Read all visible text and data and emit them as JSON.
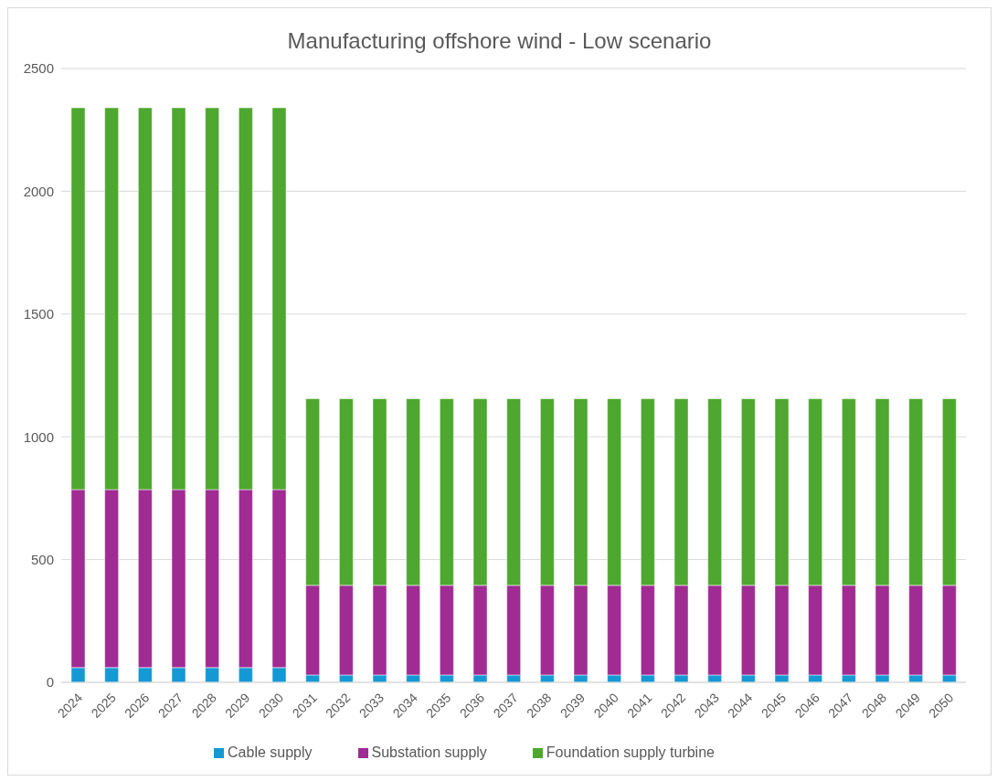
{
  "chart_data": {
    "type": "bar",
    "title": "Manufacturing offshore wind - Low scenario",
    "stacked": true,
    "categories": [
      "2024",
      "2025",
      "2026",
      "2027",
      "2028",
      "2029",
      "2030",
      "2031",
      "2032",
      "2033",
      "2034",
      "2035",
      "2036",
      "2037",
      "2038",
      "2039",
      "2040",
      "2041",
      "2042",
      "2043",
      "2044",
      "2045",
      "2046",
      "2047",
      "2048",
      "2049",
      "2050"
    ],
    "series": [
      {
        "name": "Cable supply",
        "color": "#1499d5",
        "values": [
          60,
          60,
          60,
          60,
          60,
          60,
          60,
          30,
          30,
          30,
          30,
          30,
          30,
          30,
          30,
          30,
          30,
          30,
          30,
          30,
          30,
          30,
          30,
          30,
          30,
          30,
          30
        ]
      },
      {
        "name": "Substation supply",
        "color": "#a02b93",
        "values": [
          725,
          725,
          725,
          725,
          725,
          725,
          725,
          365,
          365,
          365,
          365,
          365,
          365,
          365,
          365,
          365,
          365,
          365,
          365,
          365,
          365,
          365,
          365,
          365,
          365,
          365,
          365
        ]
      },
      {
        "name": "Foundation supply turbine",
        "color": "#4ea72e",
        "values": [
          1555,
          1555,
          1555,
          1555,
          1555,
          1555,
          1555,
          760,
          760,
          760,
          760,
          760,
          760,
          760,
          760,
          760,
          760,
          760,
          760,
          760,
          760,
          760,
          760,
          760,
          760,
          760,
          760
        ]
      }
    ],
    "ylim": [
      0,
      2500
    ],
    "yticks": [
      0,
      500,
      1000,
      1500,
      2000,
      2500
    ],
    "grid": "y",
    "legend": "bottom"
  }
}
